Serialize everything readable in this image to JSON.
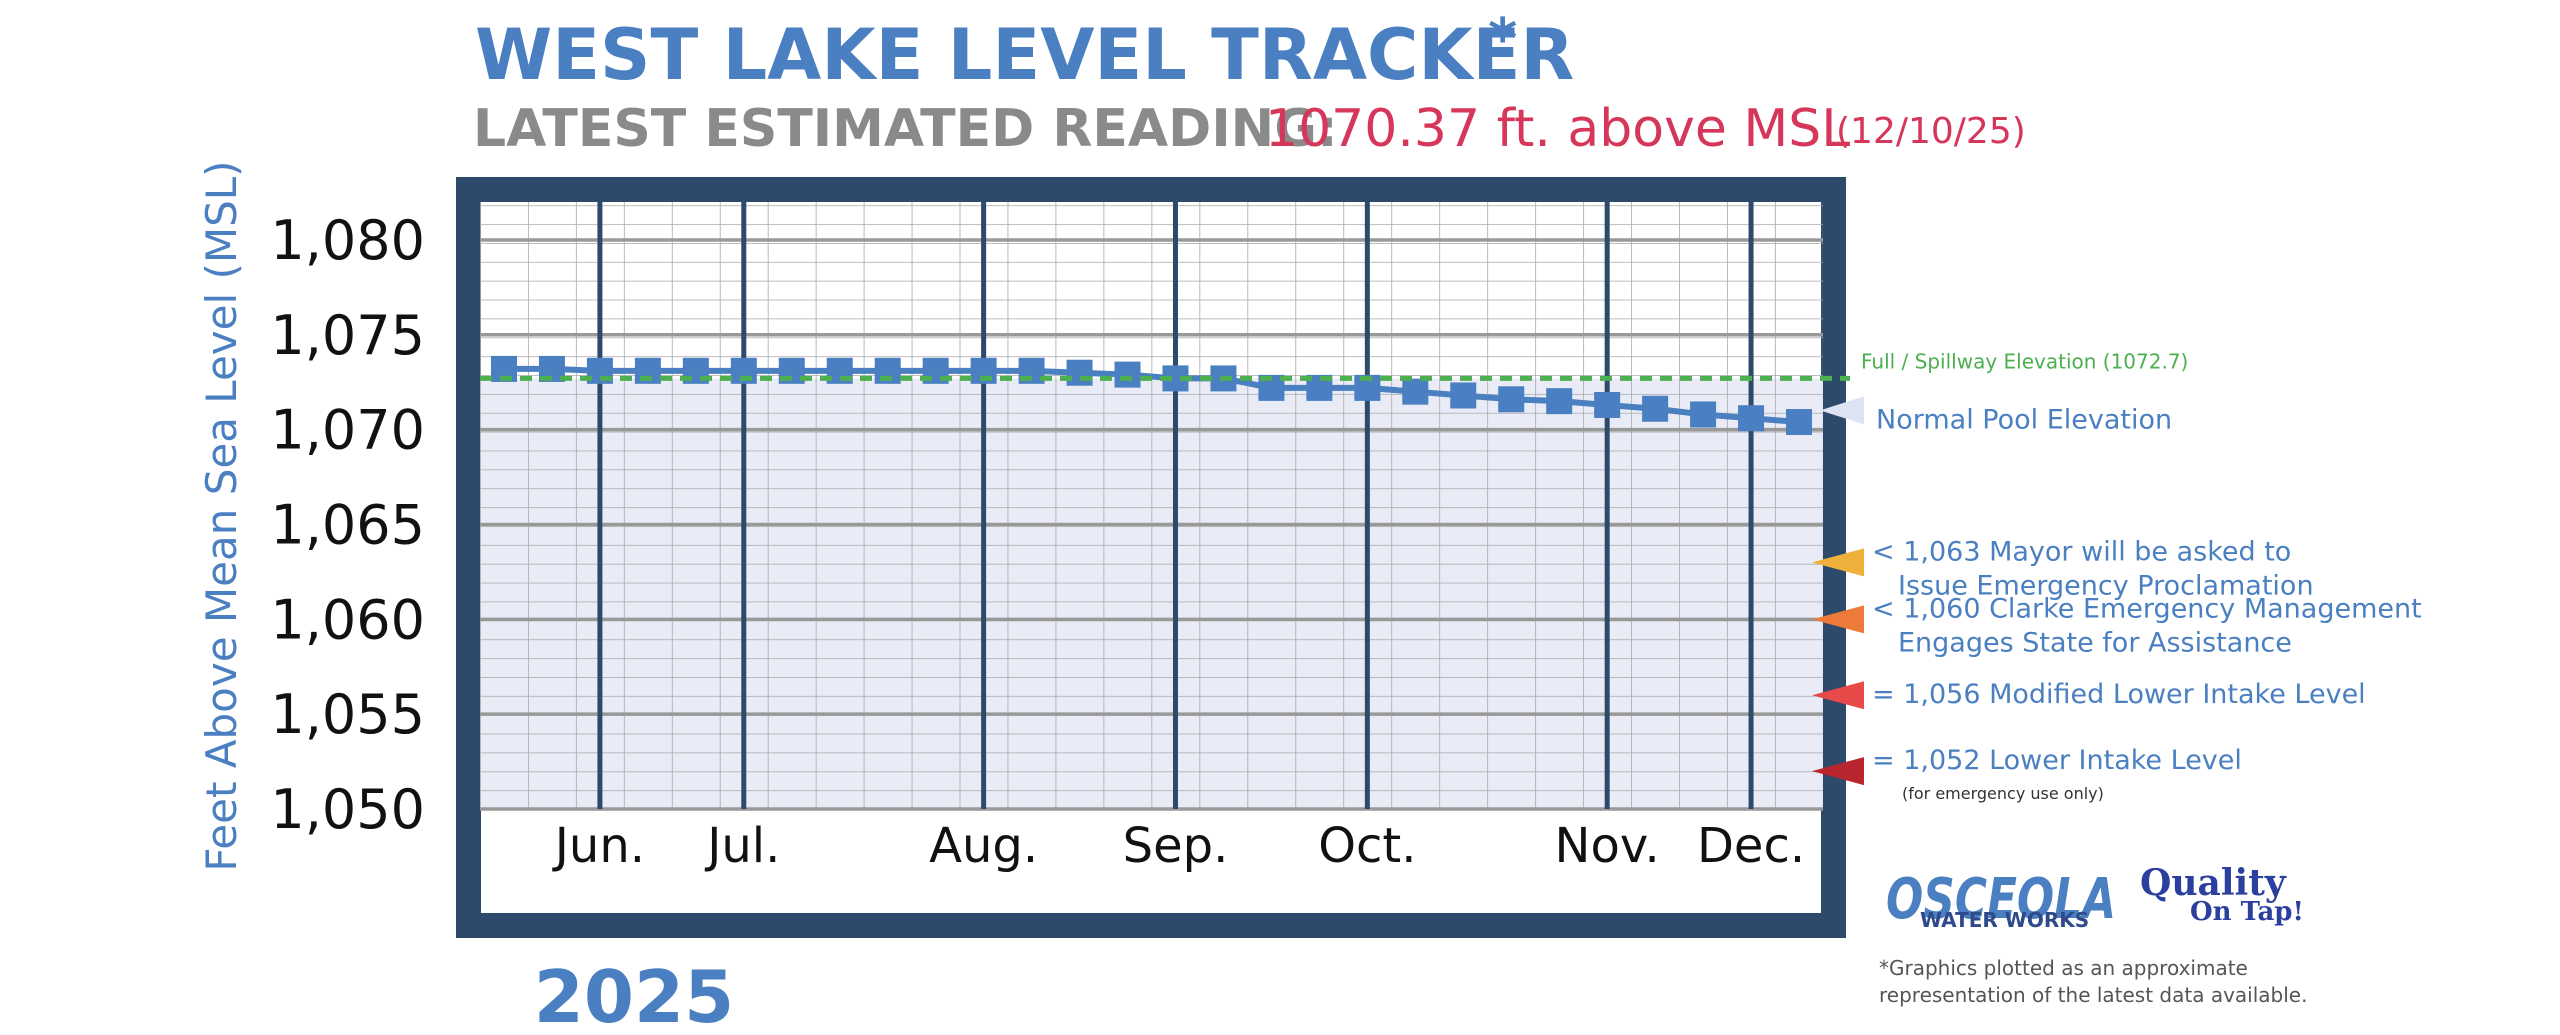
{
  "title": "WEST LAKE LEVEL TRACKER",
  "title_mark": "*",
  "subtitle_label": "LATEST ESTIMATED READING:",
  "reading": "1070.37 ft. above MSL",
  "reading_date": "(12/10/25)",
  "chart_data": {
    "type": "line",
    "ylabel": "Feet Above Mean Sea Level (MSL)",
    "categories": [
      null,
      null,
      "Jun.",
      null,
      null,
      "Jul.",
      null,
      null,
      null,
      null,
      "Aug.",
      null,
      null,
      null,
      "Sep.",
      null,
      null,
      null,
      "Oct.",
      null,
      null,
      null,
      null,
      "Nov.",
      null,
      null,
      "Dec.",
      null
    ],
    "values": [
      1073.2,
      1073.2,
      1073.1,
      1073.1,
      1073.1,
      1073.1,
      1073.1,
      1073.1,
      1073.1,
      1073.1,
      1073.1,
      1073.1,
      1073.0,
      1072.9,
      1072.7,
      1072.7,
      1072.2,
      1072.2,
      1072.2,
      1072.0,
      1071.8,
      1071.6,
      1071.5,
      1071.3,
      1071.1,
      1070.8,
      1070.6,
      1070.4
    ],
    "color": "#4a7fc1",
    "ylim": [
      1050,
      1082
    ],
    "yticks": [
      {
        "value": 1050,
        "label": "1,050"
      },
      {
        "value": 1055,
        "label": "1,055"
      },
      {
        "value": 1060,
        "label": "1,060"
      },
      {
        "value": 1065,
        "label": "1,065"
      },
      {
        "value": 1070,
        "label": "1,070"
      },
      {
        "value": 1075,
        "label": "1,075"
      },
      {
        "value": 1080,
        "label": "1,080"
      }
    ],
    "grid": true,
    "reference_line": {
      "label": "Full / Spillway Elevation (1072.7)",
      "value": 1072.7,
      "color": "#4caf50"
    },
    "normal_pool": {
      "label": "Normal Pool Elevation",
      "color": "#dde3f2"
    },
    "thresholds": [
      {
        "level": 1063,
        "lines": [
          "< 1,063 Mayor will be asked to",
          "Issue Emergency Proclamation"
        ],
        "color": "#f0b03c"
      },
      {
        "level": 1060,
        "lines": [
          "< 1,060 Clarke Emergency Management",
          "Engages State for Assistance"
        ],
        "color": "#ee7a3a"
      },
      {
        "level": 1056,
        "lines": [
          "= 1,056 Modified Lower Intake Level"
        ],
        "color": "#e84a4a"
      },
      {
        "level": 1052,
        "lines": [
          "= 1,052 Lower Intake Level",
          "(for emergency use only)"
        ],
        "color": "#b8252f"
      }
    ],
    "year_label": "2025"
  },
  "logos": {
    "osceola": [
      "OSCEOLA",
      "WATER WORKS"
    ],
    "quality": [
      "Quality",
      "On Tap!"
    ]
  },
  "footnote": [
    "*Graphics plotted as an approximate",
    "representation of the latest data available."
  ]
}
